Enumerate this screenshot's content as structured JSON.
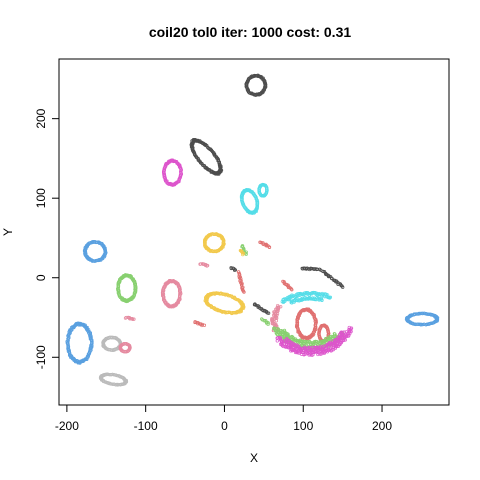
{
  "chart_data": {
    "type": "scatter",
    "title": "coil20 tol0 iter: 1000 cost: 0.31",
    "xlabel": "X",
    "ylabel": "Y",
    "xlim": [
      -210,
      285
    ],
    "ylim": [
      -160,
      275
    ],
    "xticks": [
      "-200",
      "-100",
      "0",
      "100",
      "200"
    ],
    "xtick_values": [
      -200,
      -100,
      0,
      100,
      200
    ],
    "yticks": [
      "-100",
      "0",
      "100",
      "200"
    ],
    "ytick_values": [
      -100,
      0,
      100,
      200
    ],
    "grid": false,
    "legend": false,
    "marker": "open-circle",
    "series": [
      {
        "color": "#4d4d4d",
        "shape": "ring",
        "center": [
          40,
          242
        ],
        "rx": 12,
        "ry": 12,
        "angle": -30
      },
      {
        "color": "#4d4d4d",
        "shape": "ring",
        "center": [
          -23,
          152
        ],
        "rx": 10,
        "ry": 26,
        "angle": 40
      },
      {
        "color": "#dd55cc",
        "shape": "ring",
        "center": [
          -66,
          132
        ],
        "rx": 11,
        "ry": 15,
        "angle": 0
      },
      {
        "color": "#55dde8",
        "shape": "ring",
        "center": [
          32,
          96
        ],
        "rx": 9,
        "ry": 15,
        "angle": 20
      },
      {
        "color": "#55dde8",
        "shape": "ring",
        "center": [
          49,
          110
        ],
        "rx": 5,
        "ry": 7,
        "angle": 0
      },
      {
        "color": "#5aa0e0",
        "shape": "ring",
        "center": [
          -164,
          33
        ],
        "rx": 13,
        "ry": 12,
        "angle": 0
      },
      {
        "color": "#f2c94c",
        "shape": "ring",
        "center": [
          -13,
          44
        ],
        "rx": 12,
        "ry": 11,
        "angle": 0
      },
      {
        "color": "#88d070",
        "shape": "ring",
        "center": [
          -124,
          -13
        ],
        "rx": 11,
        "ry": 16,
        "angle": 0
      },
      {
        "color": "#e58aa0",
        "shape": "ring",
        "center": [
          -67,
          -20
        ],
        "rx": 11,
        "ry": 16,
        "angle": 0
      },
      {
        "color": "#f2c94c",
        "shape": "ring",
        "center": [
          0,
          -32
        ],
        "rx": 24,
        "ry": 11,
        "angle": -15
      },
      {
        "color": "#5aa0e0",
        "shape": "ring",
        "center": [
          -184,
          -82
        ],
        "rx": 15,
        "ry": 24,
        "angle": 0
      },
      {
        "color": "#bbbbbb",
        "shape": "ring",
        "center": [
          -143,
          -83
        ],
        "rx": 11,
        "ry": 8,
        "angle": 0
      },
      {
        "color": "#bbbbbb",
        "shape": "ring",
        "center": [
          -141,
          -128
        ],
        "rx": 16,
        "ry": 6,
        "angle": -10
      },
      {
        "color": "#e58aa0",
        "shape": "ring",
        "center": [
          -126,
          -88
        ],
        "rx": 6,
        "ry": 5,
        "angle": 0
      },
      {
        "color": "#5aa0e0",
        "shape": "ring",
        "center": [
          251,
          -52
        ],
        "rx": 19,
        "ry": 7,
        "angle": 0
      },
      {
        "color": "#e07070",
        "shape": "ring",
        "center": [
          104,
          -58
        ],
        "rx": 12,
        "ry": 18,
        "angle": 0
      },
      {
        "color": "#e07070",
        "shape": "ring",
        "center": [
          126,
          -70
        ],
        "rx": 6,
        "ry": 10,
        "angle": 0
      },
      {
        "color": "#e58aa0",
        "shape": "arc",
        "center": [
          115,
          -55
        ],
        "rx": 52,
        "ry": 38,
        "start": 150,
        "end": 200
      },
      {
        "color": "#88d070",
        "shape": "arc",
        "center": [
          110,
          -50
        ],
        "rx": 48,
        "ry": 38,
        "start": 200,
        "end": 330
      },
      {
        "color": "#88d070",
        "shape": "arc",
        "center": [
          110,
          -50
        ],
        "rx": 42,
        "ry": 32,
        "start": 210,
        "end": 320
      },
      {
        "color": "#dd55cc",
        "shape": "arc",
        "center": [
          110,
          -50
        ],
        "rx": 52,
        "ry": 45,
        "start": 215,
        "end": 345
      },
      {
        "color": "#dd55cc",
        "shape": "arc",
        "center": [
          110,
          -50
        ],
        "rx": 46,
        "ry": 40,
        "start": 225,
        "end": 335
      },
      {
        "color": "#55dde8",
        "shape": "arc",
        "center": [
          110,
          -50
        ],
        "rx": 50,
        "ry": 30,
        "start": 60,
        "end": 140
      },
      {
        "color": "#55dde8",
        "shape": "arc",
        "center": [
          110,
          -50
        ],
        "rx": 42,
        "ry": 24,
        "start": 70,
        "end": 130
      },
      {
        "color": "#4d4d4d",
        "shape": "line",
        "from": [
          98,
          12
        ],
        "to": [
          122,
          10
        ]
      },
      {
        "color": "#4d4d4d",
        "shape": "line",
        "from": [
          125,
          8
        ],
        "to": [
          150,
          -12
        ]
      },
      {
        "color": "#4d4d4d",
        "shape": "line",
        "from": [
          38,
          -33
        ],
        "to": [
          56,
          -45
        ]
      },
      {
        "color": "#e07070",
        "shape": "line",
        "from": [
          45,
          45
        ],
        "to": [
          58,
          38
        ]
      },
      {
        "color": "#e07070",
        "shape": "line",
        "from": [
          18,
          8
        ],
        "to": [
          24,
          -18
        ]
      },
      {
        "color": "#e07070",
        "shape": "line",
        "from": [
          -38,
          -55
        ],
        "to": [
          -26,
          -60
        ]
      },
      {
        "color": "#88d070",
        "shape": "line",
        "from": [
          22,
          40
        ],
        "to": [
          28,
          30
        ]
      },
      {
        "color": "#88d070",
        "shape": "line",
        "from": [
          48,
          -52
        ],
        "to": [
          56,
          -58
        ]
      },
      {
        "color": "#f2c94c",
        "shape": "line",
        "from": [
          20,
          35
        ],
        "to": [
          24,
          30
        ]
      },
      {
        "color": "#e58aa0",
        "shape": "line",
        "from": [
          -125,
          -50
        ],
        "to": [
          -115,
          -52
        ]
      },
      {
        "color": "#e58aa0",
        "shape": "line",
        "from": [
          -30,
          18
        ],
        "to": [
          -22,
          15
        ]
      },
      {
        "color": "#4d4d4d",
        "shape": "line",
        "from": [
          8,
          12
        ],
        "to": [
          14,
          10
        ]
      },
      {
        "color": "#e07070",
        "shape": "line",
        "from": [
          74,
          -5
        ],
        "to": [
          86,
          -15
        ]
      }
    ]
  }
}
